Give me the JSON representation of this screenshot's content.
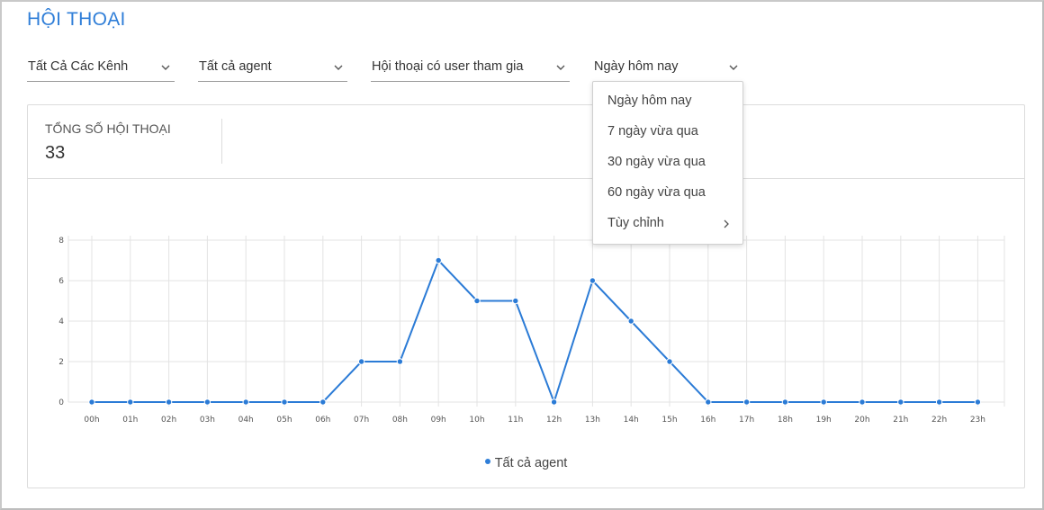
{
  "page": {
    "title": "HỘI THOẠI"
  },
  "filters": [
    {
      "label": "Tất Cả Các Kênh"
    },
    {
      "label": "Tất cả agent"
    },
    {
      "label": "Hội thoại có user tham gia"
    },
    {
      "label": "Ngày hôm nay"
    }
  ],
  "date_dropdown": {
    "options": [
      "Ngày hôm nay",
      "7 ngày vừa qua",
      "30 ngày vừa qua",
      "60 ngày vừa qua",
      "Tùy chỉnh"
    ]
  },
  "stats": {
    "total_label": "TỔNG SỐ HỘI THOẠI",
    "total_value": "33"
  },
  "colors": {
    "accent": "#2f7ed8",
    "line": "#2b7bd6",
    "grid": "#e3e3e3"
  },
  "icons": {
    "chevron": "chevron-down-icon",
    "submenu": "chevron-right-icon"
  },
  "chart_data": {
    "type": "line",
    "x": [
      "00h",
      "01h",
      "02h",
      "03h",
      "04h",
      "05h",
      "06h",
      "07h",
      "08h",
      "09h",
      "10h",
      "11h",
      "12h",
      "13h",
      "14h",
      "15h",
      "16h",
      "17h",
      "18h",
      "19h",
      "20h",
      "21h",
      "22h",
      "23h"
    ],
    "series": [
      {
        "name": "Tất cả agent",
        "values": [
          0,
          0,
          0,
          0,
          0,
          0,
          0,
          2,
          2,
          7,
          5,
          5,
          0,
          6,
          4,
          2,
          0,
          0,
          0,
          0,
          0,
          0,
          0,
          0
        ]
      }
    ],
    "ylim": [
      0,
      8
    ],
    "yticks": [
      0,
      2,
      4,
      6,
      8
    ],
    "grid": true,
    "legend": "bottom-center"
  }
}
